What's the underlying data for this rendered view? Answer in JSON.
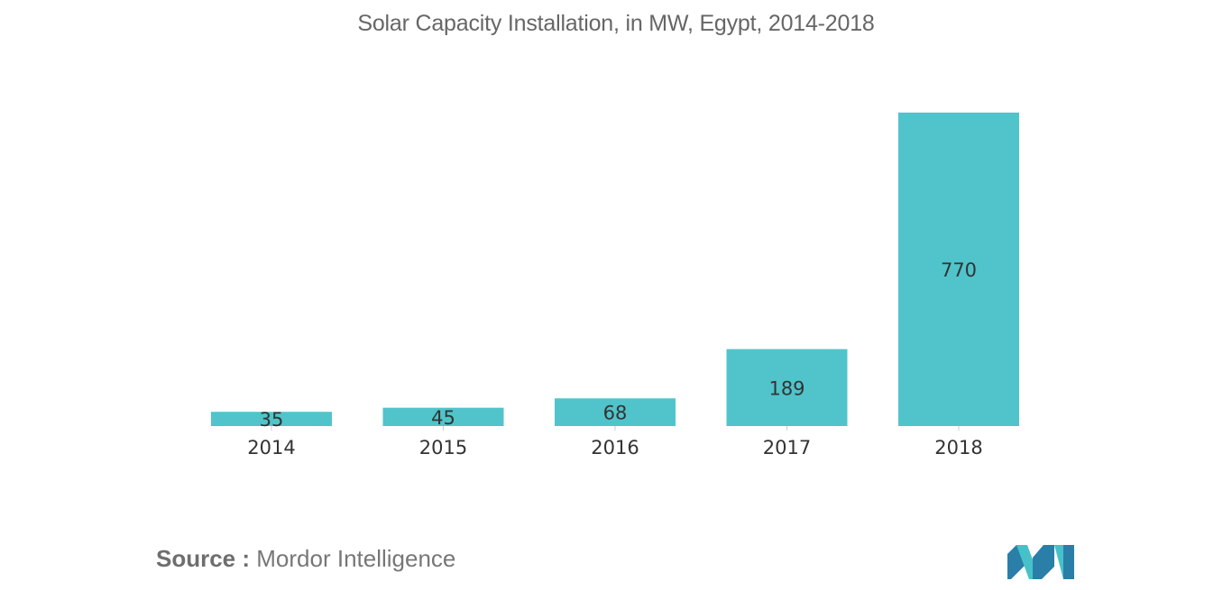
{
  "title": "Solar Capacity Installation, in MW, Egypt, 2014-2018",
  "source": {
    "label": "Source :",
    "text": "Mordor Intelligence"
  },
  "colors": {
    "bar": "#50C4CA",
    "title": "#666666",
    "text": "#333333",
    "axis": "#cccccc",
    "logo_dark": "#2a7fa8",
    "logo_light": "#47c1c9"
  },
  "chart_data": {
    "type": "bar",
    "title": "Solar Capacity Installation, in MW, Egypt, 2014-2018",
    "categories": [
      "2014",
      "2015",
      "2016",
      "2017",
      "2018"
    ],
    "values": [
      35,
      45,
      68,
      189,
      770
    ],
    "xlabel": "",
    "ylabel": "",
    "ylim": [
      0,
      770
    ],
    "grid": false,
    "legend": "none"
  }
}
